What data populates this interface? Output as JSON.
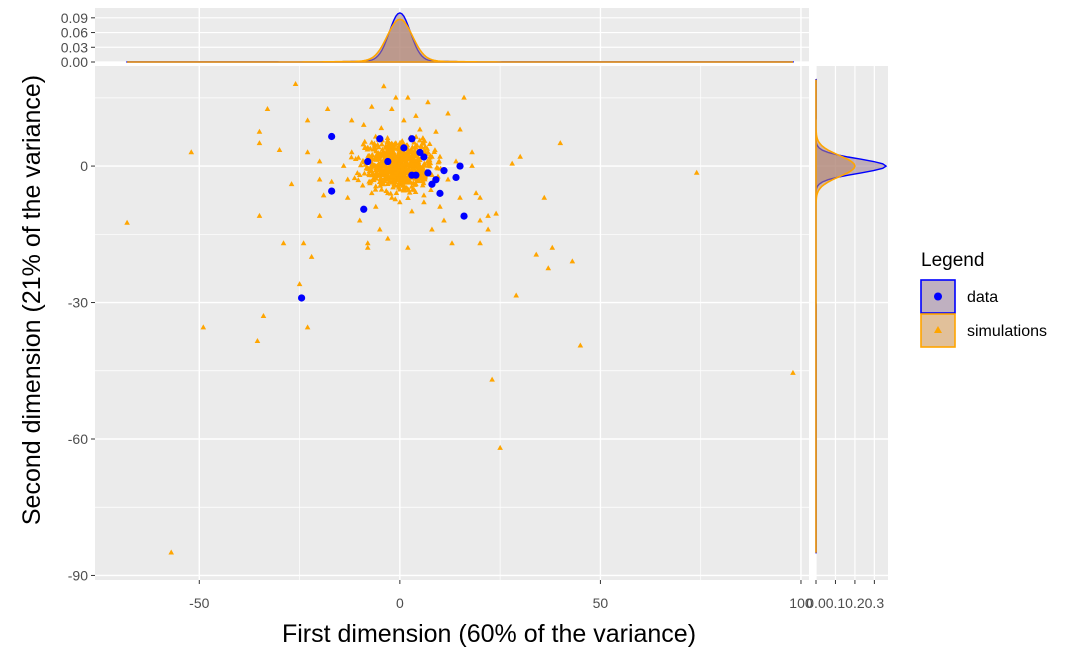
{
  "chart_data": {
    "type": "scatter",
    "xlabel": "First dimension (60% of the variance)",
    "ylabel": "Second dimension (21% of the variance)",
    "xlim": [
      -76,
      102
    ],
    "ylim": [
      -91,
      22
    ],
    "x_ticks": [
      -50,
      0,
      50,
      100
    ],
    "x_tick_labels": [
      "-50",
      "0",
      "50",
      "100"
    ],
    "y_ticks": [
      0,
      -30,
      -60,
      -90
    ],
    "y_tick_labels": [
      "0",
      "-30",
      "-60",
      "-90"
    ],
    "grid": true,
    "colors": {
      "data": "#0000ff",
      "simulations": "#ffa500",
      "panel": "#ebebeb",
      "gridline": "#ffffff"
    },
    "legend": {
      "title": "Legend",
      "position": "right",
      "entries": [
        {
          "label": "data",
          "color": "#0000ff",
          "shape": "circle"
        },
        {
          "label": "simulations",
          "color": "#ffa500",
          "shape": "triangle"
        }
      ]
    },
    "series": [
      {
        "name": "data",
        "marker": "circle",
        "points": [
          [
            -24.5,
            -29
          ],
          [
            -17,
            6.5
          ],
          [
            -17,
            -5.5
          ],
          [
            -9,
            -9.5
          ],
          [
            -5,
            6
          ],
          [
            1,
            4
          ],
          [
            3,
            6
          ],
          [
            5,
            3
          ],
          [
            7,
            -1.5
          ],
          [
            8,
            -4
          ],
          [
            9,
            -3
          ],
          [
            10,
            -6
          ],
          [
            11,
            -1
          ],
          [
            14,
            -2.5
          ],
          [
            15,
            0
          ],
          [
            16,
            -11
          ],
          [
            3,
            -2
          ],
          [
            -3,
            1
          ],
          [
            4,
            -2
          ],
          [
            6,
            2
          ],
          [
            -8,
            1
          ]
        ]
      },
      {
        "name": "simulations",
        "marker": "triangle",
        "points": [
          [
            -68,
            -12.5
          ],
          [
            -52,
            3
          ],
          [
            -49,
            -35.5
          ],
          [
            -57,
            -85
          ],
          [
            -35.5,
            -38.5
          ],
          [
            -34,
            -33
          ],
          [
            -35,
            -11
          ],
          [
            -35,
            7.5
          ],
          [
            -35,
            5
          ],
          [
            -33,
            12.5
          ],
          [
            -30,
            3.5
          ],
          [
            -26,
            18
          ],
          [
            -29,
            -17
          ],
          [
            -25,
            -26
          ],
          [
            -24,
            -17
          ],
          [
            -23,
            -35.5
          ],
          [
            -22,
            -20
          ],
          [
            -27,
            -4
          ],
          [
            -20,
            -3
          ],
          [
            -20,
            -11
          ],
          [
            -19,
            -6.5
          ],
          [
            -23,
            10
          ],
          [
            -23,
            3
          ],
          [
            -20,
            1
          ],
          [
            -18,
            12.5
          ],
          [
            -17,
            -3.5
          ],
          [
            -13,
            -7
          ],
          [
            -13,
            -3
          ],
          [
            -12,
            10
          ],
          [
            -11,
            1.5
          ],
          [
            -10,
            -12
          ],
          [
            -9,
            9
          ],
          [
            -8,
            -17
          ],
          [
            -8,
            -18
          ],
          [
            -7,
            13
          ],
          [
            -7,
            -6
          ],
          [
            -6,
            -4.5
          ],
          [
            -6,
            -9
          ],
          [
            -5,
            -14
          ],
          [
            -4,
            -2
          ],
          [
            -3,
            -6
          ],
          [
            -3,
            -16
          ],
          [
            -2,
            -7
          ],
          [
            -2,
            12.5
          ],
          [
            -4,
            17.5
          ],
          [
            -1,
            15
          ],
          [
            0,
            -8
          ],
          [
            1,
            10
          ],
          [
            1,
            -5
          ],
          [
            2,
            -18
          ],
          [
            2,
            15
          ],
          [
            3,
            -10
          ],
          [
            4,
            -4
          ],
          [
            4,
            11
          ],
          [
            5,
            8
          ],
          [
            6,
            -6.5
          ],
          [
            6,
            -8
          ],
          [
            7,
            14
          ],
          [
            8,
            -14
          ],
          [
            8,
            2
          ],
          [
            9,
            7.5
          ],
          [
            10,
            -9
          ],
          [
            11,
            -12
          ],
          [
            12,
            11.5
          ],
          [
            13,
            -17
          ],
          [
            15,
            -7
          ],
          [
            15,
            8
          ],
          [
            16,
            15
          ],
          [
            18,
            3
          ],
          [
            18,
            0
          ],
          [
            19,
            -6
          ],
          [
            20,
            -7
          ],
          [
            20,
            -12
          ],
          [
            22,
            -14
          ],
          [
            22,
            -11
          ],
          [
            20,
            -17
          ],
          [
            24,
            -10.5
          ],
          [
            23,
            -47
          ],
          [
            25,
            -62
          ],
          [
            28,
            0.5
          ],
          [
            29,
            -28.5
          ],
          [
            30,
            2
          ],
          [
            34,
            -19.5
          ],
          [
            37,
            -22.5
          ],
          [
            38,
            -18
          ],
          [
            40,
            5
          ],
          [
            43,
            -21
          ],
          [
            45,
            -39.5
          ],
          [
            36,
            -7
          ],
          [
            74,
            -1.5
          ],
          [
            98,
            -45.5
          ],
          [
            -4,
            3
          ],
          [
            -2,
            2
          ],
          [
            0,
            0
          ],
          [
            1,
            -1
          ],
          [
            3,
            2
          ],
          [
            -6,
            -1
          ],
          [
            5,
            0
          ],
          [
            -1,
            5
          ],
          [
            2,
            -3
          ],
          [
            -3,
            -3
          ],
          [
            4,
            4
          ],
          [
            -8,
            4
          ],
          [
            8,
            -2
          ],
          [
            -10,
            -2
          ],
          [
            10,
            2
          ],
          [
            -12,
            3
          ],
          [
            12,
            -3
          ],
          [
            -14,
            0
          ],
          [
            14,
            1
          ]
        ]
      }
    ],
    "top_marginal": {
      "y_ticks": [
        0.0,
        0.03,
        0.06,
        0.09
      ],
      "y_tick_labels": [
        "0.00",
        "0.03",
        "0.06",
        "0.09"
      ],
      "ylim": [
        0,
        0.11
      ]
    },
    "right_marginal": {
      "x_ticks": [
        0.0,
        0.1,
        0.2,
        0.3
      ],
      "x_tick_labels": [
        "0.0",
        "0.1",
        "0.2",
        "0.3"
      ],
      "xlim": [
        0,
        0.37
      ]
    }
  }
}
